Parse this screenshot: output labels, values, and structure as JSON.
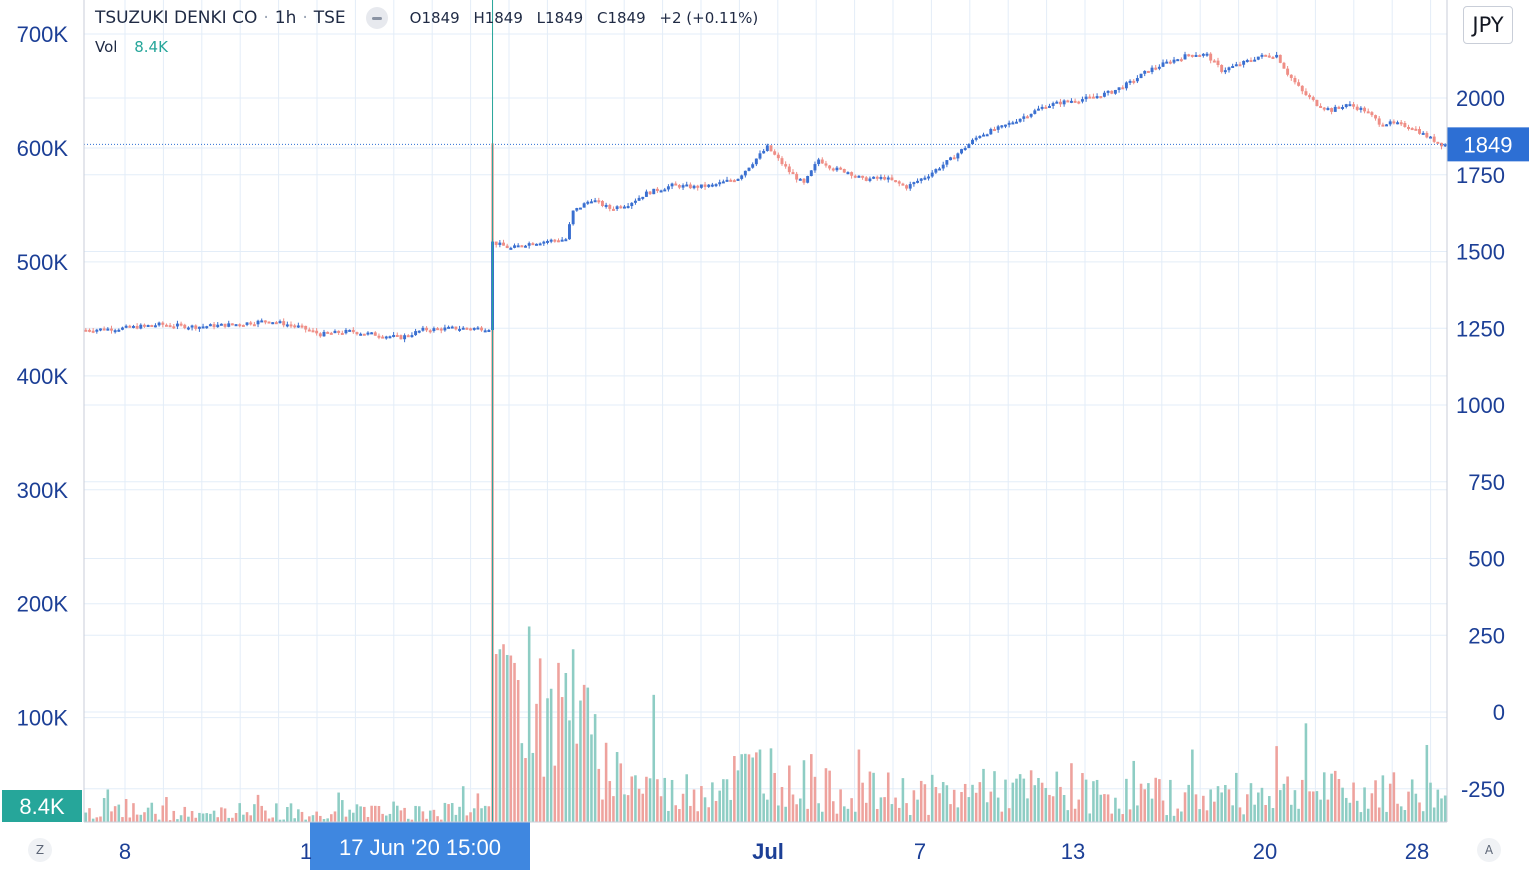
{
  "header": {
    "symbol": "TSUZUKI DENKI CO",
    "interval": "1h",
    "exchange": "TSE",
    "ohlc": {
      "o": "O1849",
      "h": "H1849",
      "l": "L1849",
      "c": "C1849",
      "change": "+2 (+0.11%)"
    },
    "vol_label": "Vol",
    "vol_value": "8.4K"
  },
  "currency_button": "JPY",
  "corner_left": "Z",
  "corner_right": "A",
  "colors": {
    "up": "#3a6fd0",
    "down": "#ef8e86",
    "vol_up": "#8ecdc4",
    "vol_down": "#eea29d",
    "axis_text": "#1c3f96",
    "grid": "#e3edf8",
    "tag_price": "#2d6fd4",
    "tag_vol": "#26a69a",
    "tag_time": "#3f87e0",
    "crosshair": "#26a69a"
  },
  "chart_data": {
    "type": "candlestick",
    "interval": "1h",
    "x_labels": [
      "8",
      "1",
      "Jul",
      "7",
      "13",
      "20",
      "28"
    ],
    "crosshair_time": "17 Jun '20   15:00",
    "price_axis": {
      "ticks": [
        -250,
        0,
        250,
        500,
        750,
        1000,
        1250,
        1500,
        1750,
        2000
      ],
      "range": [
        -270,
        2260
      ],
      "current": 1849,
      "current_label": "1849"
    },
    "volume_axis": {
      "ticks": [
        "100K",
        "200K",
        "300K",
        "400K",
        "500K",
        "600K",
        "700K"
      ],
      "values": [
        100000,
        200000,
        300000,
        400000,
        500000,
        600000,
        700000
      ],
      "range": [
        8000,
        735000
      ],
      "current_label": "8.4K"
    },
    "price_path": [
      [
        0,
        1245
      ],
      [
        10,
        1250
      ],
      [
        20,
        1262
      ],
      [
        30,
        1255
      ],
      [
        40,
        1262
      ],
      [
        50,
        1275
      ],
      [
        58,
        1255
      ],
      [
        64,
        1230
      ],
      [
        72,
        1240
      ],
      [
        80,
        1228
      ],
      [
        86,
        1220
      ],
      [
        92,
        1245
      ],
      [
        100,
        1250
      ],
      [
        110,
        1250
      ],
      [
        111,
        1530
      ],
      [
        116,
        1510
      ],
      [
        120,
        1525
      ],
      [
        126,
        1535
      ],
      [
        131,
        1540
      ],
      [
        133,
        1630
      ],
      [
        138,
        1670
      ],
      [
        143,
        1640
      ],
      [
        148,
        1655
      ],
      [
        153,
        1690
      ],
      [
        160,
        1715
      ],
      [
        166,
        1710
      ],
      [
        171,
        1715
      ],
      [
        178,
        1740
      ],
      [
        186,
        1840
      ],
      [
        192,
        1760
      ],
      [
        196,
        1720
      ],
      [
        200,
        1800
      ],
      [
        204,
        1770
      ],
      [
        208,
        1760
      ],
      [
        212,
        1735
      ],
      [
        218,
        1740
      ],
      [
        224,
        1710
      ],
      [
        230,
        1750
      ],
      [
        236,
        1800
      ],
      [
        244,
        1880
      ],
      [
        250,
        1905
      ],
      [
        256,
        1940
      ],
      [
        262,
        1975
      ],
      [
        268,
        1990
      ],
      [
        274,
        2000
      ],
      [
        280,
        2020
      ],
      [
        285,
        2050
      ],
      [
        290,
        2090
      ],
      [
        296,
        2120
      ],
      [
        302,
        2145
      ],
      [
        306,
        2140
      ],
      [
        310,
        2090
      ],
      [
        315,
        2110
      ],
      [
        320,
        2135
      ],
      [
        325,
        2140
      ],
      [
        328,
        2080
      ],
      [
        332,
        2020
      ],
      [
        336,
        1980
      ],
      [
        340,
        1960
      ],
      [
        344,
        1980
      ],
      [
        349,
        1960
      ],
      [
        353,
        1920
      ],
      [
        358,
        1915
      ],
      [
        362,
        1905
      ],
      [
        366,
        1875
      ],
      [
        370,
        1849
      ]
    ],
    "volume_path": [
      [
        0,
        18000
      ],
      [
        50,
        24000
      ],
      [
        80,
        30000
      ],
      [
        110,
        20000
      ],
      [
        111,
        605000
      ],
      [
        112,
        160000
      ],
      [
        116,
        140000
      ],
      [
        120,
        130000
      ],
      [
        126,
        110000
      ],
      [
        133,
        145000
      ],
      [
        140,
        75000
      ],
      [
        150,
        55000
      ],
      [
        160,
        40000
      ],
      [
        176,
        60000
      ],
      [
        186,
        70000
      ],
      [
        200,
        45000
      ],
      [
        230,
        40000
      ],
      [
        260,
        45000
      ],
      [
        280,
        40000
      ],
      [
        300,
        38000
      ],
      [
        330,
        45000
      ],
      [
        370,
        38000
      ]
    ],
    "volume_spikes": [
      [
        111,
        605000
      ],
      [
        113,
        160000
      ],
      [
        115,
        160000
      ],
      [
        117,
        145000
      ],
      [
        121,
        140000
      ],
      [
        124,
        175000
      ],
      [
        133,
        150000
      ],
      [
        135,
        115000
      ],
      [
        140,
        55000
      ],
      [
        155,
        105000
      ],
      [
        184,
        72000
      ],
      [
        192,
        58000
      ],
      [
        198,
        58000
      ],
      [
        211,
        72000
      ],
      [
        245,
        55000
      ],
      [
        269,
        58000
      ],
      [
        286,
        72000
      ],
      [
        302,
        60000
      ],
      [
        325,
        75000
      ],
      [
        333,
        78000
      ],
      [
        338,
        52000
      ],
      [
        352,
        45000
      ],
      [
        357,
        52000
      ],
      [
        366,
        74000
      ]
    ],
    "volume_spike_sizes": [
      604000,
      160000,
      155000,
      148000,
      180000,
      152000,
      160000,
      115000,
      55000,
      120000,
      72000,
      58000,
      68000,
      72000,
      55000,
      60000,
      62000,
      72000,
      75000,
      95000,
      52000,
      45000,
      52000,
      76000
    ]
  }
}
